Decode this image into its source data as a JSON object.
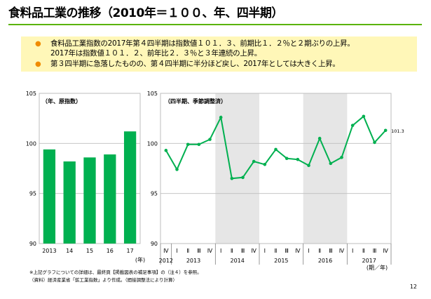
{
  "page": {
    "title": "食料品工業の推移（2010年＝１００、年、四半期）",
    "bullets": [
      "食料品工業指数の2017年第４四半期は指数値１０１．３、前期比１．２％と２期ぶりの上昇。",
      "2017年は指数値１０１．２、前年比２．３％と３年連続の上昇。",
      "第３四半期に急落したものの、第４四半期に半分ほど戻し、2017年としては大きく上昇。"
    ],
    "bullet_marks": [
      "●",
      "",
      "●"
    ],
    "notes": [
      "※上記グラフについての詳細は、最終頁【掲載図表の補足事項】の（注４）を参照。",
      "（資料）経済産業省「鉱工業指数」より作成。（間接調整法により計算）"
    ],
    "page_number": "12"
  },
  "chart_data": [
    {
      "type": "bar",
      "title": "（年、原指数）",
      "categories": [
        "2013",
        "14",
        "15",
        "16",
        "17"
      ],
      "values": [
        99.4,
        98.2,
        98.6,
        98.9,
        101.2
      ],
      "xunit": "(年)",
      "ylim": [
        90,
        105
      ],
      "yticks": [
        90,
        95,
        100,
        105
      ],
      "color": "#00b050"
    },
    {
      "type": "line",
      "title": "（四半期、季節調整済）",
      "x": [
        "2012 IV",
        "2013 I",
        "2013 II",
        "2013 III",
        "2013 IV",
        "2014 I",
        "2014 II",
        "2014 III",
        "2014 IV",
        "2015 I",
        "2015 II",
        "2015 III",
        "2015 IV",
        "2016 I",
        "2016 II",
        "2016 III",
        "2016 IV",
        "2017 I",
        "2017 II",
        "2017 III",
        "2017 IV"
      ],
      "quarter_labels": [
        "Ⅳ",
        "Ⅰ",
        "Ⅱ",
        "Ⅲ",
        "Ⅳ",
        "Ⅰ",
        "Ⅱ",
        "Ⅲ",
        "Ⅳ",
        "Ⅰ",
        "Ⅱ",
        "Ⅲ",
        "Ⅳ",
        "Ⅰ",
        "Ⅱ",
        "Ⅲ",
        "Ⅳ",
        "Ⅰ",
        "Ⅱ",
        "Ⅲ",
        "Ⅳ"
      ],
      "year_labels": [
        "2012",
        "2013",
        "2014",
        "2015",
        "2016",
        "2017"
      ],
      "values": [
        99.3,
        97.4,
        99.9,
        99.9,
        100.4,
        102.6,
        96.5,
        96.6,
        98.2,
        97.9,
        99.4,
        98.5,
        98.4,
        97.8,
        100.5,
        98.0,
        98.6,
        101.8,
        102.7,
        100.1,
        101.3
      ],
      "last_value_label": "101.3",
      "xunit": "(期／年)",
      "ylim": [
        90,
        105
      ],
      "yticks": [
        90,
        95,
        100,
        105
      ],
      "color": "#00b050",
      "shaded_years": [
        "2014",
        "2016"
      ],
      "shade_color": "#e6e6e6"
    }
  ]
}
